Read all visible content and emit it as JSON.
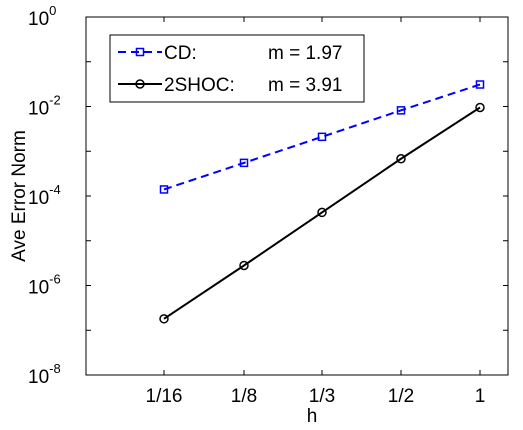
{
  "chart_data": {
    "type": "line",
    "title": "",
    "xlabel": "h",
    "ylabel": "Ave Error Norm",
    "categories": [
      "1/16",
      "1/8",
      "1/3",
      "1/2",
      "1"
    ],
    "yscale": "log",
    "ylim": [
      1e-08,
      1
    ],
    "y_ticks": [
      {
        "base": "10",
        "exp": "0"
      },
      {
        "base": "10",
        "exp": "-2"
      },
      {
        "base": "10",
        "exp": "-4"
      },
      {
        "base": "10",
        "exp": "-6"
      },
      {
        "base": "10",
        "exp": "-8"
      }
    ],
    "y_tick_values": [
      1,
      0.01,
      0.0001,
      1e-06,
      1e-08
    ],
    "grid": false,
    "legend_position": "top-left",
    "series": [
      {
        "name": "CD:",
        "slope_label": "m = 1.97",
        "color": "#0000ff",
        "line_style": "dashed",
        "marker": "square",
        "values": [
          0.00014,
          0.00055,
          0.0021,
          0.0082,
          0.031
        ]
      },
      {
        "name": "2SHOC:",
        "slope_label": "m = 3.91",
        "color": "#000000",
        "line_style": "solid",
        "marker": "circle",
        "values": [
          1.8e-07,
          2.8e-06,
          4.3e-05,
          0.00068,
          0.0095
        ]
      }
    ]
  }
}
